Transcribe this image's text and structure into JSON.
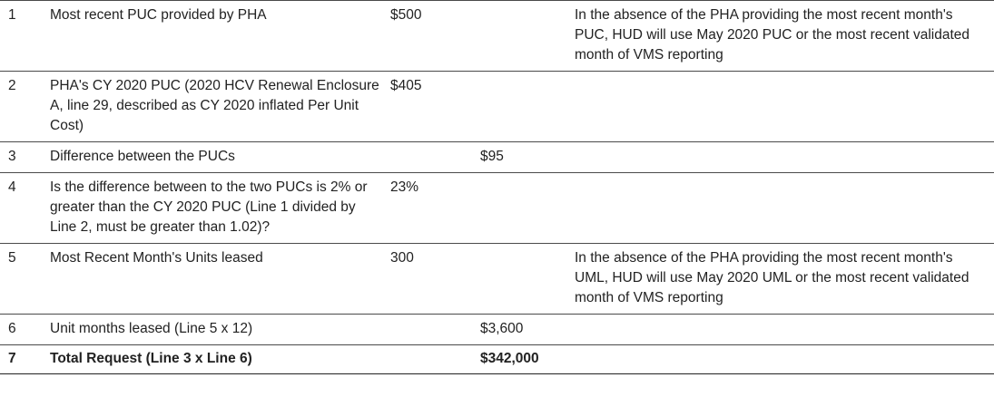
{
  "table": {
    "rows": [
      {
        "line": "1",
        "description": "Most recent PUC provided by PHA",
        "amount": "$500",
        "subtotal": "",
        "note": "In the absence of the PHA providing the most recent month's PUC, HUD will use May 2020 PUC or the most recent validated month of VMS reporting"
      },
      {
        "line": "2",
        "description": "PHA's CY 2020 PUC (2020 HCV Renewal Enclosure A, line 29, described as CY 2020 inflated Per Unit Cost)",
        "amount": "$405",
        "subtotal": "",
        "note": ""
      },
      {
        "line": "3",
        "description": "Difference between the PUCs",
        "amount": "",
        "subtotal": "$95",
        "note": ""
      },
      {
        "line": "4",
        "description": "Is the difference between to the two PUCs is 2% or greater than the CY 2020 PUC (Line 1 divided by Line 2, must be greater than 1.02)?",
        "amount": "23%",
        "subtotal": "",
        "note": ""
      },
      {
        "line": "5",
        "description": "Most Recent Month's Units leased",
        "amount": "300",
        "subtotal": "",
        "note": "In the absence of the PHA providing the most recent month's UML, HUD will use May 2020 UML or the most recent validated month of VMS reporting"
      },
      {
        "line": "6",
        "description": "Unit months leased (Line 5 x 12)",
        "amount": "",
        "subtotal": "$3,600",
        "note": ""
      },
      {
        "line": "7",
        "description": "Total Request (Line 3 x Line 6)",
        "amount": "",
        "subtotal": "$342,000",
        "note": ""
      }
    ]
  }
}
